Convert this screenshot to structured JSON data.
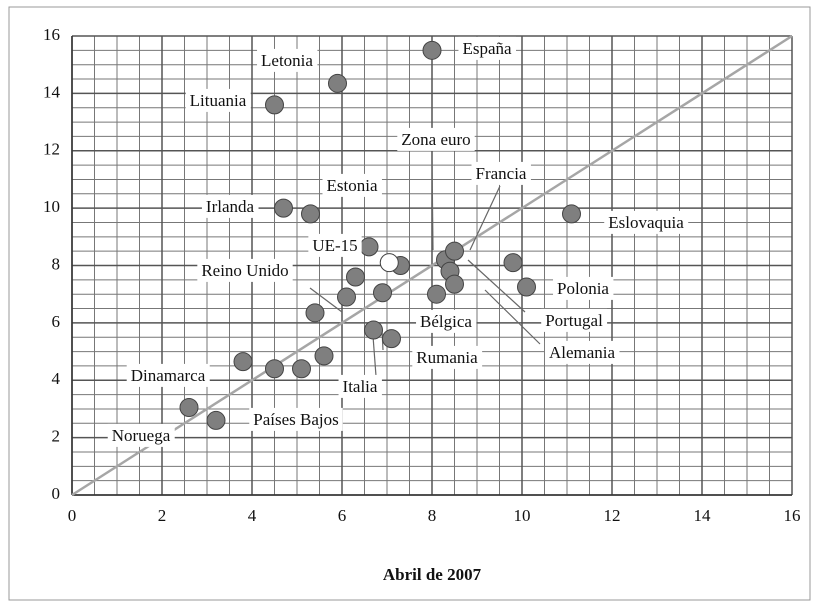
{
  "chart_data": {
    "type": "scatter",
    "xlabel": "Abril de 2007",
    "x": [
      8.0,
      5.9,
      4.5,
      4.7,
      5.3,
      11.1,
      6.6,
      7.3,
      8.3,
      8.5,
      8.4,
      8.5,
      8.1,
      9.8,
      10.1,
      6.3,
      6.1,
      6.9,
      5.4,
      6.7,
      7.1,
      5.6,
      5.1,
      4.5,
      3.8,
      2.6,
      3.2
    ],
    "y": [
      15.5,
      14.35,
      13.6,
      10.0,
      9.8,
      9.8,
      8.65,
      8.0,
      8.2,
      8.5,
      7.8,
      7.35,
      7.0,
      8.1,
      7.25,
      7.6,
      6.9,
      7.05,
      6.35,
      5.75,
      5.45,
      4.85,
      4.4,
      4.4,
      4.65,
      3.05,
      2.6
    ],
    "color": "#7f7f7f",
    "highlight": {
      "x": [
        7.05
      ],
      "y": [
        8.1
      ],
      "color": "#ffffff"
    },
    "diagonal": {
      "x": [
        0,
        16
      ],
      "y": [
        0,
        16
      ],
      "color": "#a6a6a6"
    },
    "annotations": [
      "Letonia",
      "España",
      "Lituania",
      "Irlanda",
      "Estonia",
      "Zona euro",
      "Francia",
      "Eslovaquia",
      "UE-15",
      "Reino Unido",
      "Polonia",
      "Portugal",
      "Bélgica",
      "Rumania",
      "Alemania",
      "Italia",
      "Dinamarca",
      "Países Bajos",
      "Noruega"
    ],
    "xlim": [
      0,
      16
    ],
    "ylim": [
      0,
      16
    ],
    "xticks": [
      0,
      2,
      4,
      6,
      8,
      10,
      12,
      14,
      16
    ],
    "yticks": [
      0,
      2,
      4,
      6,
      8,
      10,
      12,
      14,
      16
    ],
    "grid": true
  }
}
